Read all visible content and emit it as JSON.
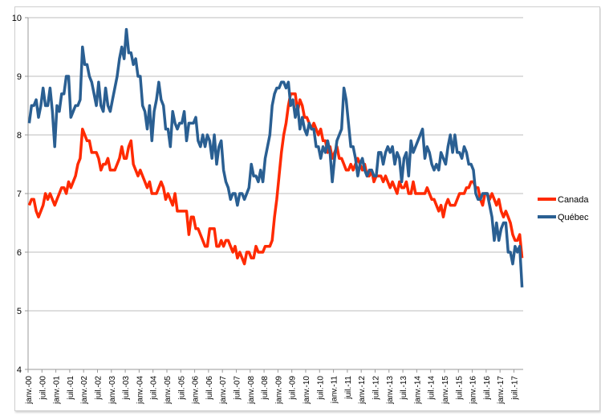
{
  "chart_data": {
    "type": "line",
    "title": "",
    "xlabel": "",
    "ylabel": "",
    "ylim": [
      4,
      10
    ],
    "yticks": [
      4,
      5,
      6,
      7,
      8,
      9,
      10
    ],
    "grid": true,
    "legend_position": "right",
    "x_tick_labels": [
      "janv.-00",
      "juil.-00",
      "janv.-01",
      "juil.-01",
      "janv.-02",
      "juil.-02",
      "janv.-03",
      "juil.-03",
      "janv.-04",
      "juil.-04",
      "janv.-05",
      "juil.-05",
      "janv.-06",
      "juil.-06",
      "janv.-07",
      "juil.-07",
      "janv.-08",
      "juil.-08",
      "janv.-09",
      "juil.-09",
      "janv.-10",
      "juil.-10",
      "janv.-11",
      "juil.-11",
      "janv.-12",
      "juil.-12",
      "janv.-13",
      "juil.-13",
      "janv.-14",
      "juil.-14",
      "janv.-15",
      "juil.-15",
      "janv.-16",
      "juil.-16",
      "janv.-17",
      "juil.-17"
    ],
    "x_start": "janv.-00",
    "months": 214,
    "series": [
      {
        "name": "Canada",
        "color": "#ff2a00",
        "values": [
          6.8,
          6.9,
          6.9,
          6.7,
          6.6,
          6.7,
          6.8,
          7.0,
          6.9,
          7.0,
          6.9,
          6.8,
          6.9,
          7.0,
          7.1,
          7.1,
          7.0,
          7.2,
          7.1,
          7.2,
          7.3,
          7.5,
          7.6,
          8.1,
          8.0,
          7.9,
          7.9,
          7.7,
          7.7,
          7.7,
          7.6,
          7.4,
          7.5,
          7.5,
          7.6,
          7.4,
          7.4,
          7.4,
          7.5,
          7.6,
          7.8,
          7.6,
          7.6,
          7.8,
          7.9,
          7.5,
          7.4,
          7.3,
          7.4,
          7.3,
          7.2,
          7.1,
          7.2,
          7.0,
          7.0,
          7.0,
          7.1,
          7.2,
          7.1,
          6.9,
          7.0,
          6.9,
          6.8,
          7.0,
          6.7,
          6.7,
          6.7,
          6.7,
          6.7,
          6.3,
          6.6,
          6.6,
          6.4,
          6.4,
          6.3,
          6.2,
          6.1,
          6.1,
          6.4,
          6.4,
          6.4,
          6.1,
          6.1,
          6.2,
          6.1,
          6.2,
          6.2,
          6.1,
          6.0,
          6.1,
          5.9,
          6.0,
          5.9,
          5.8,
          6.0,
          6.0,
          5.9,
          5.9,
          6.1,
          6.0,
          6.0,
          6.0,
          6.1,
          6.1,
          6.1,
          6.2,
          6.6,
          6.9,
          7.3,
          7.7,
          8.0,
          8.2,
          8.5,
          8.7,
          8.7,
          8.7,
          8.4,
          8.6,
          8.5,
          8.3,
          8.3,
          8.2,
          8.1,
          8.2,
          8.1,
          8.0,
          8.1,
          7.9,
          7.9,
          7.7,
          7.8,
          7.6,
          7.7,
          7.8,
          7.6,
          7.6,
          7.5,
          7.4,
          7.4,
          7.5,
          7.4,
          7.5,
          7.6,
          7.5,
          7.4,
          7.5,
          7.3,
          7.3,
          7.4,
          7.2,
          7.3,
          7.3,
          7.3,
          7.2,
          7.3,
          7.2,
          7.1,
          7.2,
          7.1,
          7.0,
          7.2,
          7.1,
          7.1,
          7.2,
          7.0,
          7.0,
          7.2,
          7.0,
          7.0,
          7.0,
          7.0,
          7.0,
          7.1,
          7.0,
          6.9,
          6.9,
          6.8,
          6.7,
          6.8,
          6.6,
          6.8,
          6.9,
          6.8,
          6.8,
          6.8,
          6.9,
          7.0,
          7.0,
          7.0,
          7.1,
          7.1,
          7.2,
          7.2,
          7.1,
          7.1,
          6.9,
          6.8,
          7.0,
          7.0,
          6.9,
          7.0,
          6.9,
          6.8,
          6.9,
          6.7,
          6.6,
          6.7,
          6.6,
          6.5,
          6.3,
          6.2,
          6.2,
          6.3,
          5.9
        ]
      },
      {
        "name": "Québec",
        "color": "#2a5f92",
        "values": [
          8.2,
          8.5,
          8.5,
          8.6,
          8.3,
          8.5,
          8.8,
          8.5,
          8.5,
          8.8,
          8.4,
          7.8,
          8.5,
          8.4,
          8.7,
          8.7,
          9.0,
          9.0,
          8.3,
          8.4,
          8.5,
          8.5,
          8.6,
          9.5,
          9.2,
          9.2,
          9.0,
          8.9,
          8.7,
          8.5,
          8.9,
          8.5,
          8.4,
          8.8,
          8.5,
          8.4,
          8.6,
          8.8,
          9.0,
          9.3,
          9.5,
          9.3,
          9.8,
          9.4,
          9.4,
          9.2,
          9.3,
          9.0,
          9.0,
          8.5,
          8.4,
          8.1,
          8.5,
          7.9,
          8.4,
          8.6,
          8.9,
          8.6,
          8.5,
          8.1,
          8.1,
          7.8,
          8.4,
          8.2,
          8.1,
          8.2,
          8.2,
          8.4,
          7.9,
          8.2,
          8.2,
          8.2,
          8.3,
          7.9,
          7.8,
          8.0,
          7.8,
          8.0,
          7.9,
          7.6,
          8.0,
          7.5,
          7.8,
          7.9,
          7.4,
          7.2,
          7.1,
          6.9,
          7.0,
          7.0,
          6.8,
          7.0,
          7.0,
          6.9,
          7.0,
          7.1,
          7.5,
          7.3,
          7.3,
          7.2,
          7.4,
          7.2,
          7.6,
          7.8,
          8.0,
          8.5,
          8.7,
          8.8,
          8.8,
          8.9,
          8.9,
          8.8,
          8.9,
          8.5,
          8.6,
          8.3,
          8.5,
          8.1,
          8.3,
          8.1,
          8.0,
          8.2,
          8.1,
          8.1,
          7.8,
          7.8,
          7.6,
          7.8,
          7.7,
          7.9,
          7.7,
          7.2,
          7.6,
          7.9,
          8.0,
          8.1,
          8.8,
          8.6,
          8.2,
          7.8,
          7.8,
          7.6,
          7.3,
          7.5,
          7.6,
          7.4,
          7.3,
          7.4,
          7.4,
          7.3,
          7.3,
          7.7,
          7.7,
          7.5,
          7.7,
          7.8,
          7.7,
          7.8,
          7.5,
          7.7,
          7.6,
          7.2,
          7.6,
          7.7,
          7.3,
          7.9,
          7.7,
          7.8,
          7.9,
          8.0,
          8.1,
          7.6,
          7.8,
          7.7,
          7.5,
          7.4,
          7.5,
          7.4,
          7.7,
          7.6,
          7.5,
          7.8,
          8.0,
          7.7,
          8.0,
          7.7,
          7.7,
          7.6,
          7.8,
          7.7,
          7.5,
          7.5,
          7.4,
          7.0,
          6.9,
          6.9,
          7.0,
          7.0,
          7.0,
          6.8,
          6.6,
          6.2,
          6.5,
          6.2,
          6.4,
          6.5,
          6.5,
          6.0,
          6.0,
          5.8,
          6.1,
          6.0,
          6.1,
          5.4
        ]
      }
    ]
  }
}
